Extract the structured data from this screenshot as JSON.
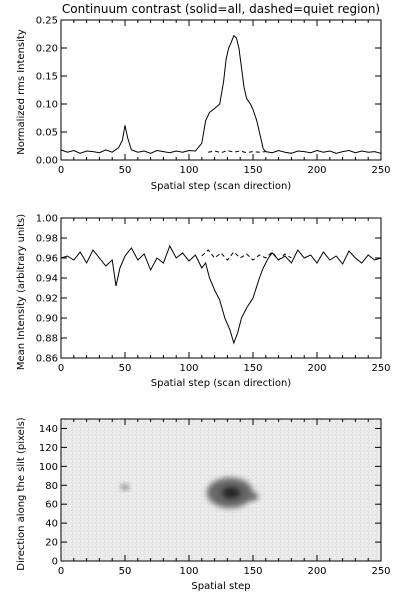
{
  "chart_data": [
    {
      "type": "line",
      "title": "Continuum contrast (solid=all, dashed=quiet region)",
      "xlabel": "Spatial step (scan direction)",
      "ylabel": "Normalized rms Intensity",
      "xlim": [
        0,
        250
      ],
      "ylim": [
        0.0,
        0.25
      ],
      "xticks": [
        0,
        50,
        100,
        150,
        200,
        250
      ],
      "xtick_labels": [
        "0",
        "50",
        "100",
        "150",
        "200",
        "250"
      ],
      "yticks": [
        0.0,
        0.05,
        0.1,
        0.15,
        0.2,
        0.25
      ],
      "ytick_labels": [
        "0.00",
        "0.05",
        "0.10",
        "0.15",
        "0.20",
        "0.25"
      ],
      "series": [
        {
          "style": "solid",
          "x": [
            0,
            5,
            10,
            15,
            20,
            25,
            30,
            35,
            40,
            45,
            48,
            50,
            52,
            55,
            60,
            65,
            70,
            75,
            80,
            85,
            90,
            95,
            100,
            105,
            110,
            113,
            116,
            120,
            124,
            127,
            129,
            131,
            133,
            135,
            137,
            139,
            141,
            143,
            145,
            148,
            150,
            153,
            156,
            158,
            160,
            165,
            170,
            175,
            180,
            185,
            190,
            195,
            200,
            205,
            210,
            215,
            220,
            225,
            230,
            235,
            240,
            245,
            250
          ],
          "y": [
            0.018,
            0.014,
            0.017,
            0.012,
            0.016,
            0.015,
            0.013,
            0.018,
            0.014,
            0.022,
            0.035,
            0.062,
            0.04,
            0.018,
            0.014,
            0.016,
            0.012,
            0.017,
            0.015,
            0.013,
            0.016,
            0.014,
            0.017,
            0.016,
            0.03,
            0.07,
            0.085,
            0.092,
            0.1,
            0.14,
            0.18,
            0.2,
            0.21,
            0.222,
            0.218,
            0.2,
            0.165,
            0.13,
            0.11,
            0.1,
            0.09,
            0.07,
            0.04,
            0.02,
            0.015,
            0.013,
            0.017,
            0.014,
            0.012,
            0.016,
            0.015,
            0.013,
            0.017,
            0.014,
            0.016,
            0.012,
            0.015,
            0.017,
            0.013,
            0.016,
            0.014,
            0.015,
            0.012
          ]
        },
        {
          "style": "dashed",
          "x": [
            115,
            120,
            125,
            130,
            135,
            140,
            145,
            150,
            155,
            160
          ],
          "y": [
            0.014,
            0.016,
            0.013,
            0.017,
            0.014,
            0.016,
            0.013,
            0.015,
            0.014,
            0.015
          ]
        }
      ]
    },
    {
      "type": "line",
      "xlabel": "Spatial step (scan direction)",
      "ylabel": "Mean Intensity (arbitrary units)",
      "xlim": [
        0,
        250
      ],
      "ylim": [
        0.86,
        1.0
      ],
      "xticks": [
        0,
        50,
        100,
        150,
        200,
        250
      ],
      "xtick_labels": [
        "0",
        "50",
        "100",
        "150",
        "200",
        "250"
      ],
      "yticks": [
        0.86,
        0.88,
        0.9,
        0.92,
        0.94,
        0.96,
        0.98,
        1.0
      ],
      "ytick_labels": [
        "0.86",
        "0.88",
        "0.90",
        "0.92",
        "0.94",
        "0.96",
        "0.98",
        "1.00"
      ],
      "series": [
        {
          "style": "solid",
          "x": [
            0,
            5,
            10,
            15,
            20,
            25,
            30,
            35,
            40,
            43,
            46,
            50,
            55,
            60,
            65,
            70,
            75,
            80,
            85,
            90,
            95,
            100,
            105,
            110,
            113,
            116,
            120,
            124,
            128,
            132,
            135,
            138,
            141,
            145,
            150,
            155,
            158,
            162,
            165,
            170,
            175,
            180,
            185,
            190,
            195,
            200,
            205,
            210,
            215,
            220,
            225,
            230,
            235,
            240,
            245,
            250
          ],
          "y": [
            0.96,
            0.962,
            0.958,
            0.966,
            0.955,
            0.968,
            0.96,
            0.952,
            0.958,
            0.932,
            0.95,
            0.962,
            0.97,
            0.958,
            0.964,
            0.948,
            0.96,
            0.955,
            0.972,
            0.96,
            0.965,
            0.957,
            0.963,
            0.95,
            0.955,
            0.94,
            0.928,
            0.918,
            0.9,
            0.888,
            0.875,
            0.885,
            0.9,
            0.91,
            0.92,
            0.94,
            0.95,
            0.96,
            0.965,
            0.958,
            0.962,
            0.955,
            0.968,
            0.96,
            0.963,
            0.955,
            0.966,
            0.958,
            0.962,
            0.954,
            0.967,
            0.96,
            0.955,
            0.963,
            0.958,
            0.96
          ]
        },
        {
          "style": "dashed",
          "x": [
            110,
            115,
            120,
            125,
            130,
            135,
            140,
            145,
            150,
            155,
            160,
            165,
            170,
            175,
            180
          ],
          "y": [
            0.962,
            0.968,
            0.96,
            0.965,
            0.958,
            0.966,
            0.96,
            0.964,
            0.958,
            0.963,
            0.96,
            0.966,
            0.958,
            0.964,
            0.96
          ]
        }
      ]
    },
    {
      "type": "heatmap",
      "xlabel": "Spatial step",
      "ylabel": "Direction along the slit (pixels)",
      "xlim": [
        0,
        250
      ],
      "ylim": [
        0,
        150
      ],
      "xticks": [
        0,
        50,
        100,
        150,
        200,
        250
      ],
      "xtick_labels": [
        "0",
        "50",
        "100",
        "150",
        "200",
        "250"
      ],
      "yticks": [
        0,
        20,
        40,
        60,
        80,
        100,
        120,
        140
      ],
      "ytick_labels": [
        "0",
        "20",
        "40",
        "60",
        "80",
        "100",
        "120",
        "140"
      ],
      "features": [
        {
          "x": 132,
          "y": 72,
          "rx": 18,
          "ry": 16,
          "intensity": 0.55
        },
        {
          "x": 133,
          "y": 72,
          "rx": 7,
          "ry": 6,
          "intensity": 0.85
        },
        {
          "x": 150,
          "y": 68,
          "rx": 4,
          "ry": 4,
          "intensity": 0.6
        },
        {
          "x": 50,
          "y": 78,
          "rx": 3,
          "ry": 3,
          "intensity": 0.5
        }
      ],
      "colors": {
        "background": "#ececec",
        "dark": "#000000"
      }
    }
  ]
}
